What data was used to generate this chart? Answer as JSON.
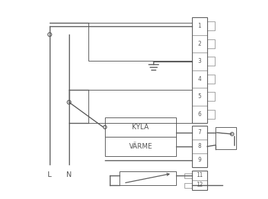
{
  "bg_color": "#ffffff",
  "line_color": "#555555",
  "L_label": "L",
  "N_label": "N",
  "KYLA_label": "KYLA",
  "VARME_label": "VÄRME",
  "terminal1_6": [
    "1",
    "2",
    "3",
    "4",
    "5",
    "6"
  ],
  "terminal7_9": [
    "7",
    "8",
    "9"
  ],
  "terminal11_12": [
    "11",
    "12"
  ],
  "lw": 1.0,
  "term_lw": 0.8
}
